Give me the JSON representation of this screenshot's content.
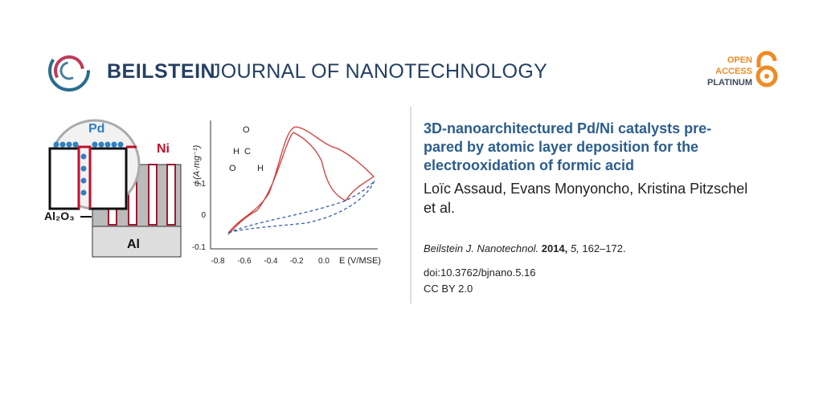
{
  "header": {
    "brand": "BEILSTEIN",
    "journal": "JOURNAL OF NANOTECHNOLOGY",
    "badge": [
      "OPEN",
      "ACCESS",
      "PLATINUM"
    ]
  },
  "graphic": {
    "schematic": {
      "pd": "Pd",
      "ni": "Ni",
      "oxide": "Al₂O₃",
      "metal": "Al"
    },
    "molecule": {
      "h1": "H",
      "c": "C",
      "o1": "O",
      "o2": "O",
      "h2": "H"
    },
    "plot": {
      "y_label": "j (A·mg⁻¹)",
      "x_label": "E (V/MSE)",
      "y_tick_labels": [
        "0.1",
        "0",
        "-0.1"
      ],
      "x_tick_labels": [
        "-0.8",
        "-0.6",
        "-0.4",
        "-0.2",
        "0.0"
      ]
    }
  },
  "article": {
    "title_lines": [
      "3D-nanoarchitectured Pd/Ni catalysts pre-",
      "pared by atomic layer deposition for the",
      "electrooxidation of formic acid"
    ],
    "author_lines": [
      "Loïc Assaud, Evans Monyoncho, Kristina Pitzschel",
      "et al."
    ],
    "citation": {
      "journal": "Beilstein J. Nanotechnol.",
      "year": "2014,",
      "volume": "5,",
      "pages": "162–172."
    },
    "doi": "doi:10.3762/bjnano.5.16",
    "license": "CC BY 2.0"
  }
}
